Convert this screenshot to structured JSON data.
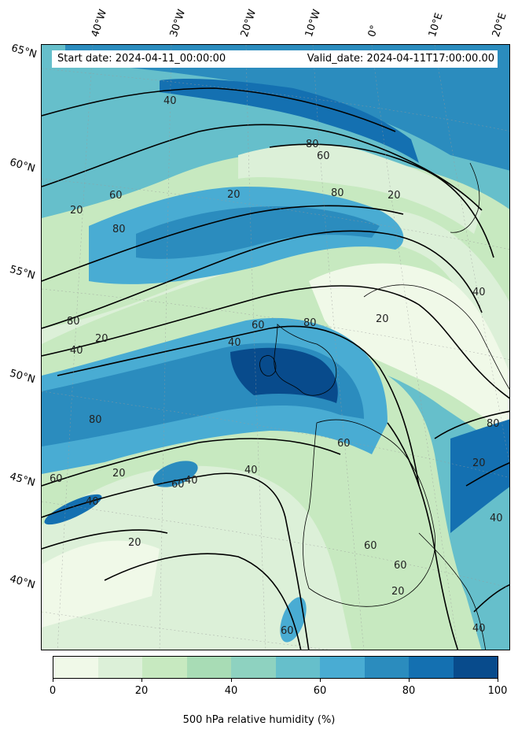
{
  "header": {
    "start_date": "Start date: 2024-04-11_00:00:00",
    "valid_date": "Valid_date: 2024-04-11T17:00:00.00"
  },
  "lat_labels": [
    "65°N",
    "60°N",
    "55°N",
    "50°N",
    "45°N",
    "40°N"
  ],
  "lon_labels": [
    "40°W",
    "30°W",
    "20°W",
    "10°W",
    "0°",
    "10°E",
    "20°E"
  ],
  "colorbar": {
    "levels": [
      0,
      10,
      20,
      30,
      40,
      50,
      60,
      70,
      80,
      90,
      100
    ],
    "tick_labels": [
      "0",
      "20",
      "40",
      "60",
      "80",
      "100"
    ],
    "colors": [
      "#f0f9e8",
      "#dcf0d8",
      "#c7e9c0",
      "#a8dcb5",
      "#8ed2c0",
      "#66bfcb",
      "#49acd3",
      "#2b8cbe",
      "#1470b1",
      "#084b8c"
    ],
    "title": "500 hPa relative humidity (%)"
  },
  "contour_labels": [
    "20",
    "40",
    "60",
    "80"
  ],
  "contour_levels": [
    20,
    40,
    60,
    80
  ]
}
